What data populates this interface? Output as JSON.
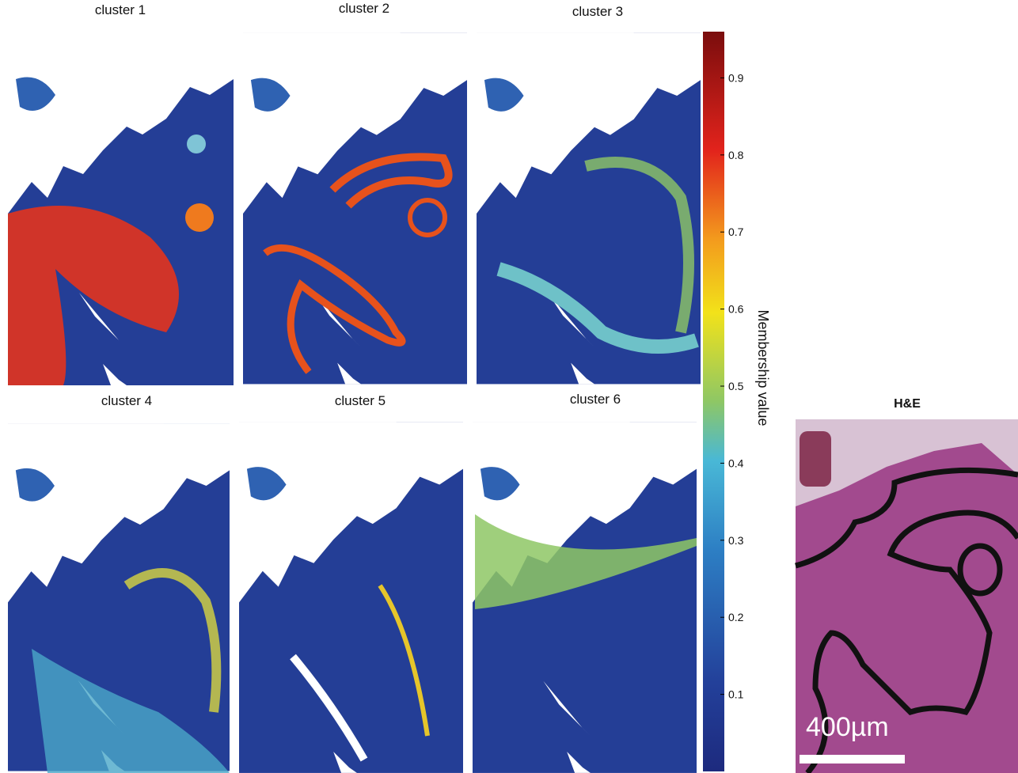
{
  "panels": [
    {
      "title": "cluster 1"
    },
    {
      "title": "cluster 2"
    },
    {
      "title": "cluster 3"
    },
    {
      "title": "cluster 4"
    },
    {
      "title": "cluster 5"
    },
    {
      "title": "cluster 6"
    }
  ],
  "colorbar": {
    "label": "Membership value",
    "lim": [
      0,
      0.96
    ],
    "ticks": [
      0.1,
      0.2,
      0.3,
      0.4,
      0.5,
      0.6,
      0.7,
      0.8,
      0.9
    ]
  },
  "reference": {
    "title": "H&E",
    "scale_bar": "400µm"
  }
}
